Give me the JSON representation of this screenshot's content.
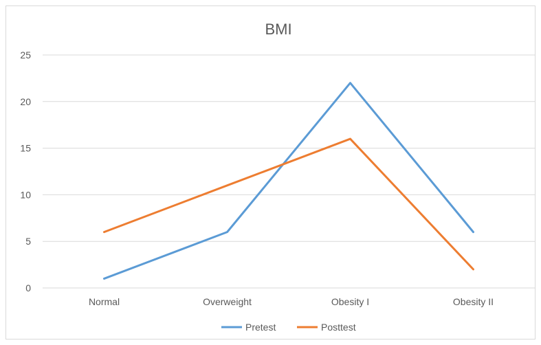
{
  "chart_data": {
    "type": "line",
    "title": "BMI",
    "categories": [
      "Normal",
      "Overweight",
      "Obesity I",
      "Obesity II"
    ],
    "series": [
      {
        "name": "Pretest",
        "values": [
          1,
          6,
          22,
          6
        ],
        "color": "#5b9bd5"
      },
      {
        "name": "Posttest",
        "values": [
          6,
          11,
          16,
          2
        ],
        "color": "#ed7d31"
      }
    ],
    "xlabel": "",
    "ylabel": "",
    "ylim": [
      0,
      25
    ],
    "yticks": [
      0,
      5,
      10,
      15,
      20,
      25
    ],
    "grid": true,
    "legend_position": "bottom"
  }
}
